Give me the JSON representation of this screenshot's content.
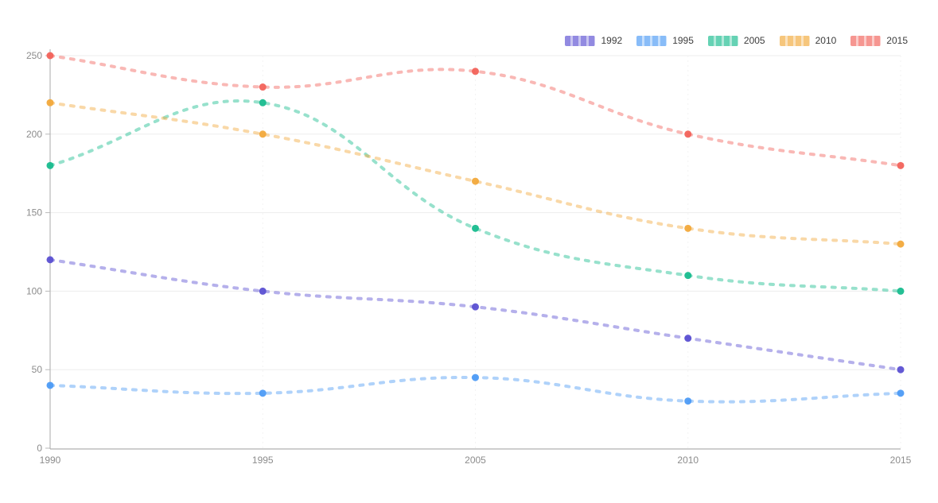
{
  "chart_data": {
    "type": "line",
    "title": "",
    "xlabel": "",
    "ylabel": "",
    "categories": [
      "1990",
      "1995",
      "2005",
      "2010",
      "2015"
    ],
    "series": [
      {
        "name": "1992",
        "color": "#5b50d2",
        "values": [
          120,
          100,
          90,
          70,
          50
        ]
      },
      {
        "name": "1995",
        "color": "#4d9bf5",
        "values": [
          40,
          35,
          45,
          30,
          35
        ]
      },
      {
        "name": "2005",
        "color": "#18bc8e",
        "values": [
          180,
          220,
          140,
          110,
          100
        ]
      },
      {
        "name": "2010",
        "color": "#f2a93b",
        "values": [
          220,
          200,
          170,
          140,
          130
        ]
      },
      {
        "name": "2015",
        "color": "#f2625a",
        "values": [
          250,
          230,
          240,
          200,
          180
        ]
      }
    ],
    "ylim": [
      0,
      250
    ],
    "yticks": [
      0,
      50,
      100,
      150,
      200,
      250
    ],
    "grid": true,
    "legend_position": "top-right",
    "line_style": "dashed",
    "smooth": true,
    "axis_color": "#a8a8a8",
    "grid_color": "#ededed",
    "tick_text_color": "#8c8c8c"
  }
}
